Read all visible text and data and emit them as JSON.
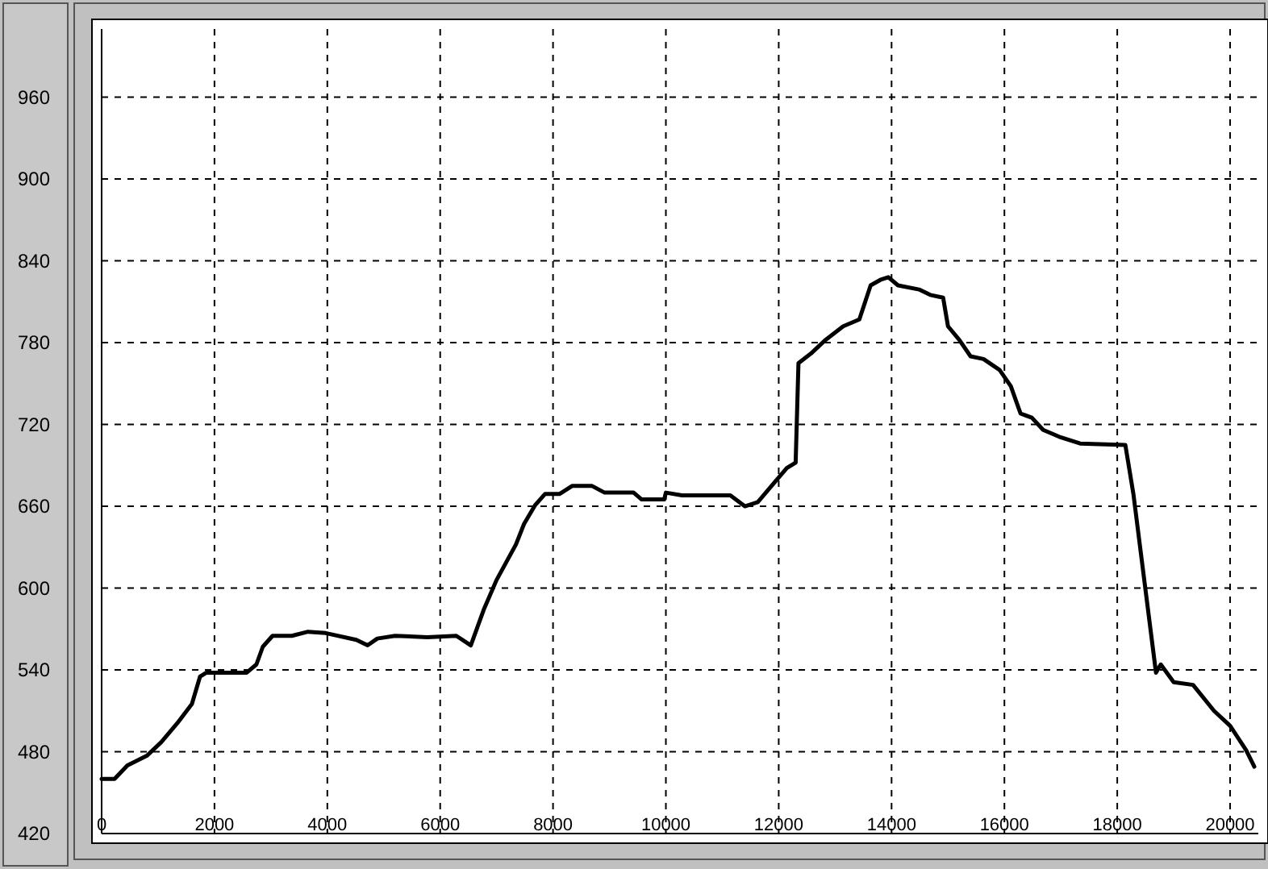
{
  "chart_data": {
    "type": "line",
    "x": [
      0,
      229,
      457,
      800,
      1057,
      1343,
      1600,
      1743,
      1857,
      2571,
      2743,
      2857,
      3029,
      3371,
      3657,
      3971,
      4514,
      4714,
      4886,
      5200,
      5771,
      6286,
      6543,
      6771,
      7000,
      7343,
      7486,
      7686,
      7857,
      8114,
      8343,
      8686,
      8914,
      9429,
      9571,
      9971,
      10000,
      10286,
      11143,
      11400,
      11629,
      11914,
      12143,
      12300,
      12350,
      12571,
      12829,
      13143,
      13429,
      13629,
      13800,
      13943,
      14114,
      14486,
      14686,
      14914,
      15000,
      15200,
      15400,
      15629,
      15914,
      16114,
      16286,
      16486,
      16686,
      16971,
      17343,
      18143,
      18286,
      18686,
      18771,
      19000,
      19343,
      19714,
      20000,
      20286,
      20429
    ],
    "series": [
      {
        "color": "#000000",
        "values": [
          460,
          460,
          470,
          477,
          487,
          501,
          515,
          535,
          538,
          538,
          544,
          557,
          565,
          565,
          568,
          567,
          562,
          558,
          563,
          565,
          564,
          565,
          558,
          584,
          606,
          632,
          647,
          661,
          669,
          669,
          675,
          675,
          670,
          670,
          665,
          665,
          670,
          668,
          668,
          660,
          663,
          677,
          688,
          692,
          765,
          772,
          782,
          792,
          797,
          822,
          826,
          828,
          822,
          819,
          815,
          813,
          792,
          782,
          770,
          768,
          760,
          748,
          728,
          725,
          716,
          711,
          706,
          705,
          669,
          538,
          544,
          531,
          529,
          510,
          499,
          481,
          469
        ]
      }
    ],
    "xlim": [
      0,
      20500
    ],
    "xticks": [
      0,
      2000,
      4000,
      6000,
      8000,
      10000,
      12000,
      14000,
      16000,
      18000,
      20000
    ],
    "ylim": [
      420,
      1010
    ],
    "yticks": [
      420,
      480,
      540,
      600,
      660,
      720,
      780,
      840,
      900,
      960
    ],
    "grid": true,
    "line_style": "solid",
    "marker": "none"
  }
}
